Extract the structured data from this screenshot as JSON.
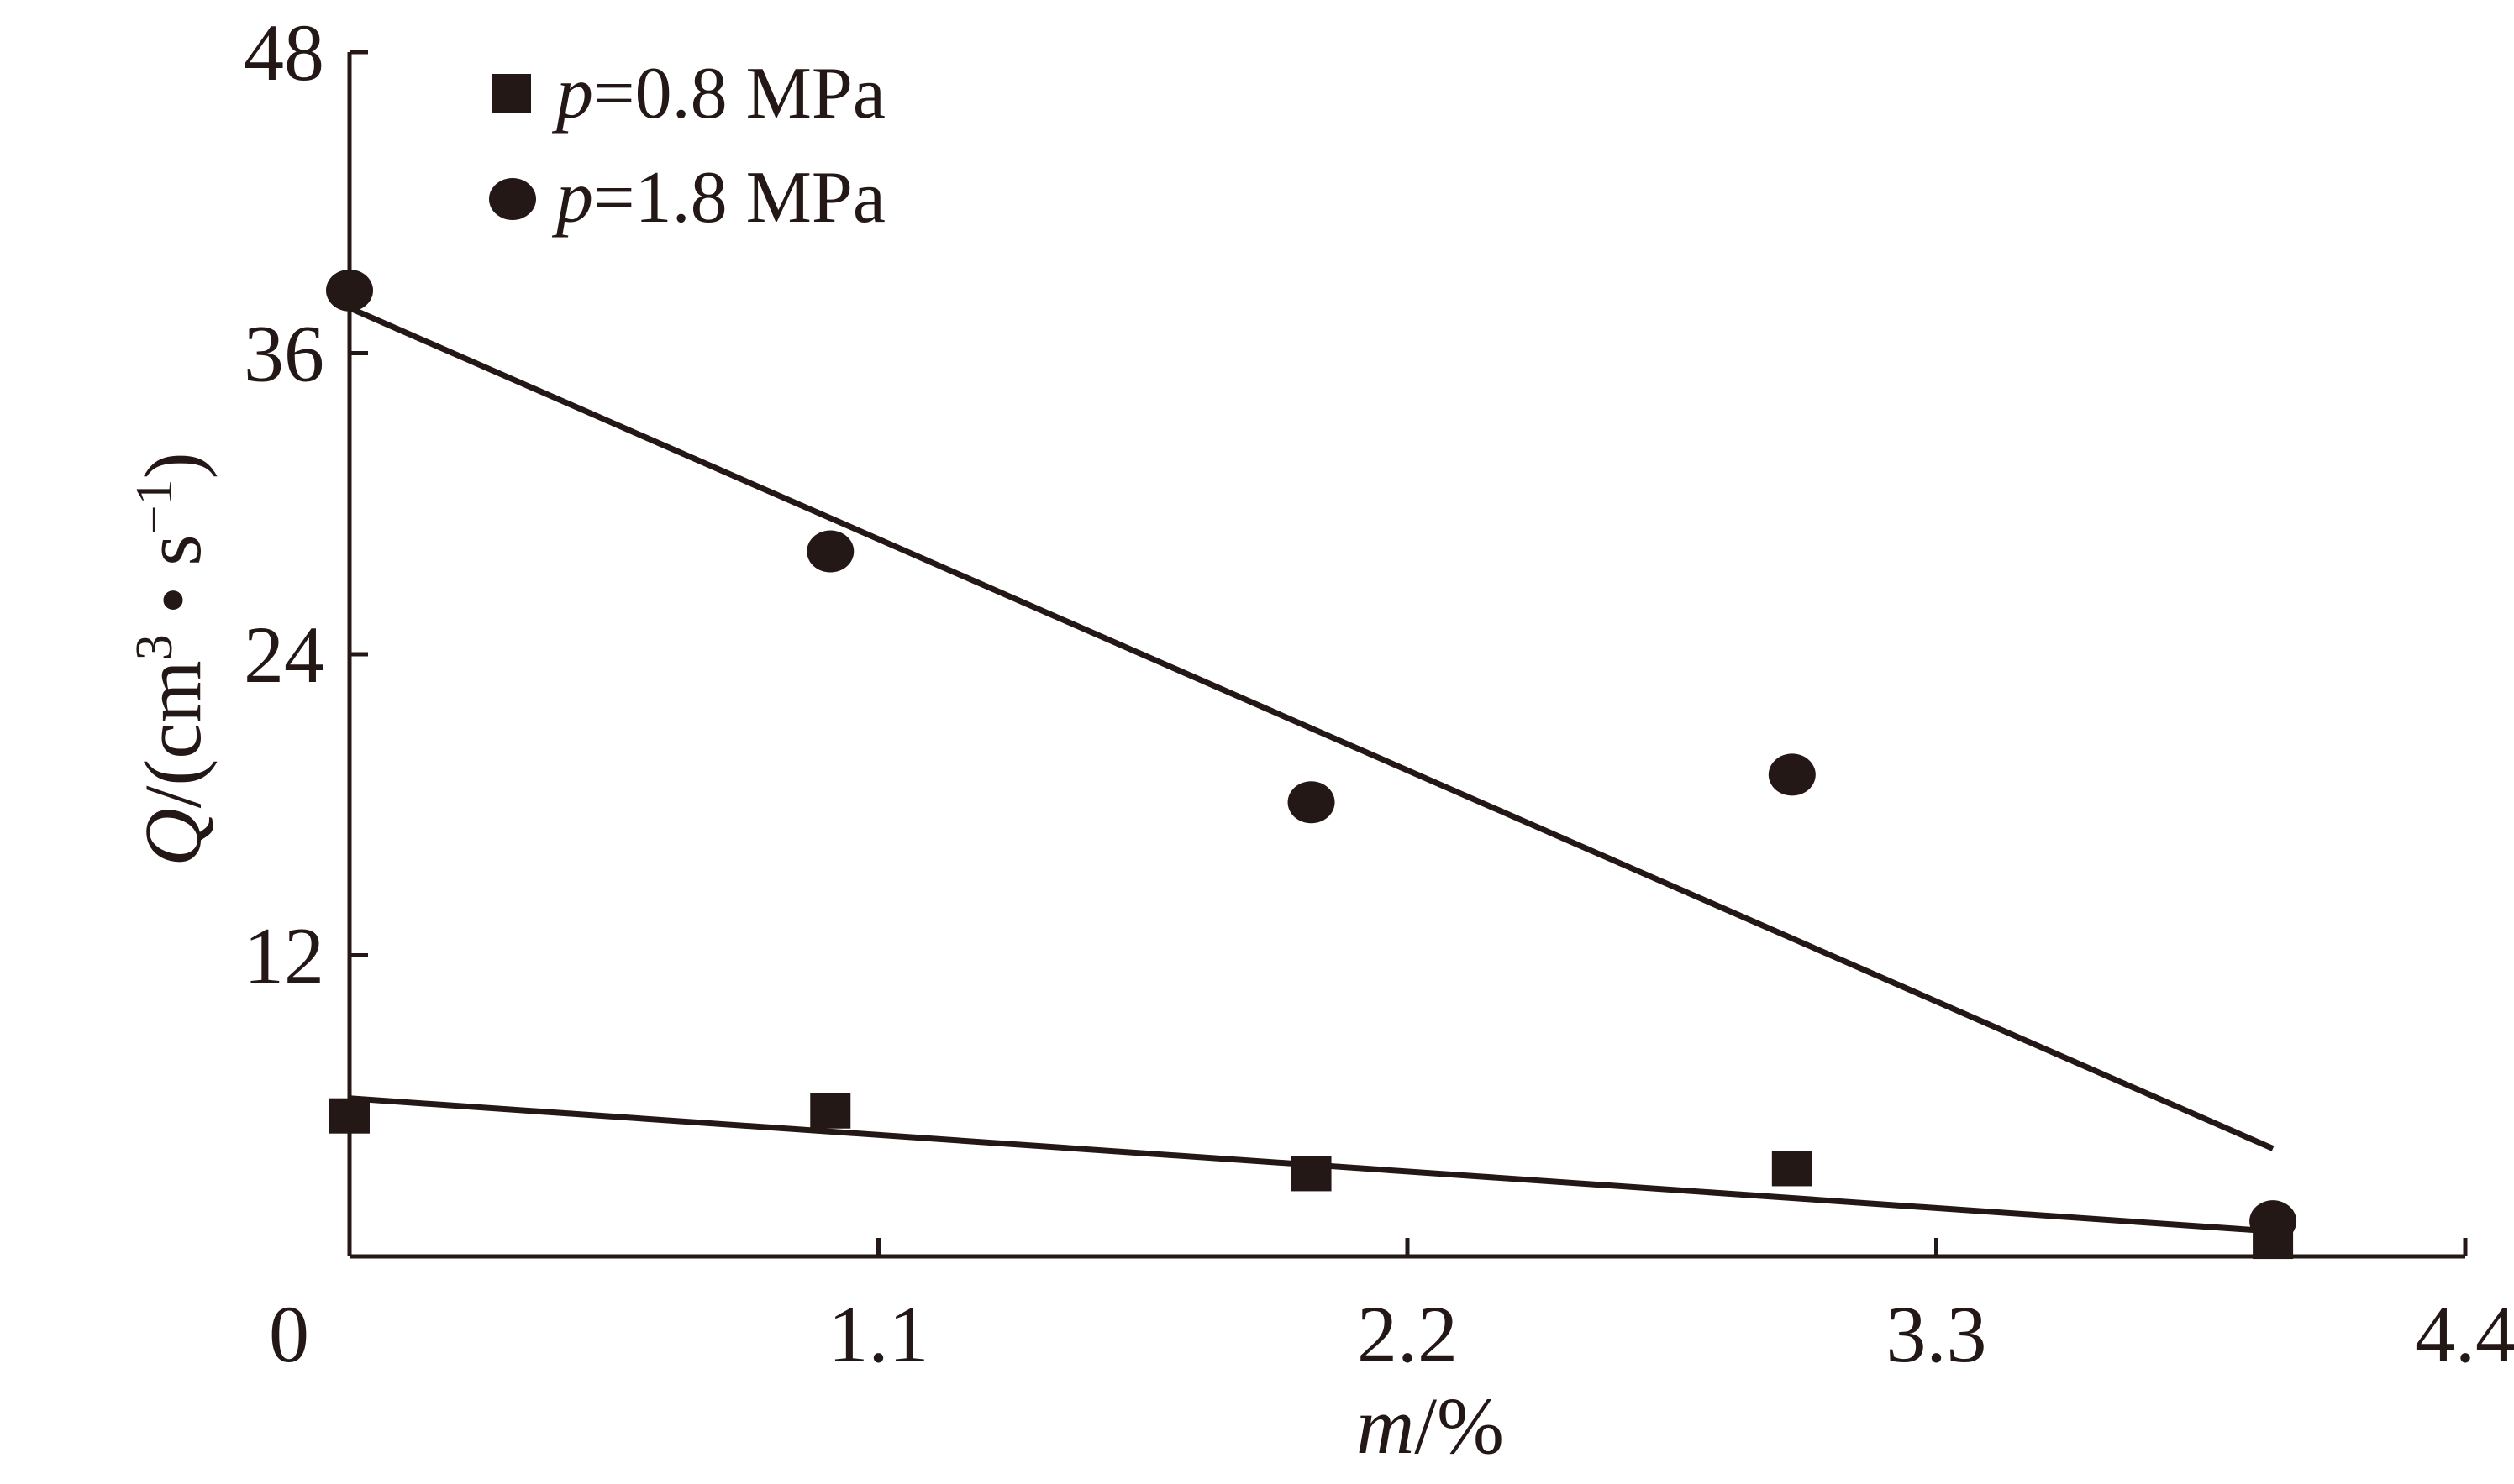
{
  "chart_data": {
    "type": "scatter",
    "title": "",
    "xlabel": {
      "var": "m",
      "rest": "/%"
    },
    "ylabel": {
      "var": "Q",
      "rest": "/(cm",
      "sup1": "3",
      "mid": " • s",
      "sup2": "−1",
      "end": ")"
    },
    "xlim": [
      0,
      4.4
    ],
    "ylim": [
      0,
      48
    ],
    "x_ticks": [
      0,
      1.1,
      2.2,
      3.3,
      4.4
    ],
    "x_tick_labels": [
      "0",
      "1.1",
      "2.2",
      "3.3",
      "4.4"
    ],
    "y_ticks": [
      12,
      24,
      36,
      48
    ],
    "y_tick_labels": [
      "12",
      "24",
      "36",
      "48"
    ],
    "legend_position": "top-left",
    "series": [
      {
        "name": "p=0.8 MPa",
        "name_var": "p",
        "name_rest": "=0.8 MPa",
        "marker": "square",
        "color": "#231815",
        "x": [
          0.0,
          1.0,
          2.0,
          3.0,
          4.0
        ],
        "y": [
          5.6,
          5.8,
          3.3,
          3.5,
          0.6
        ],
        "fit": {
          "x": [
            0.0,
            4.0
          ],
          "y": [
            6.3,
            1.0
          ]
        }
      },
      {
        "name": "p=1.8 MPa",
        "name_var": "p",
        "name_rest": "=1.8 MPa",
        "marker": "circle",
        "color": "#231815",
        "x": [
          0.0,
          1.0,
          2.0,
          3.0,
          4.0
        ],
        "y": [
          38.5,
          28.1,
          18.1,
          19.2,
          1.4
        ],
        "fit": {
          "x": [
            0.0,
            4.0
          ],
          "y": [
            37.8,
            4.3
          ]
        }
      }
    ]
  }
}
